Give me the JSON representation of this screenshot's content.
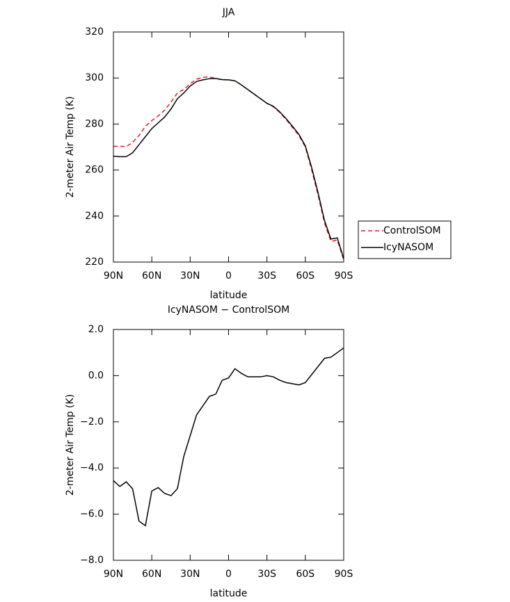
{
  "chart_data": [
    {
      "type": "line",
      "title": "JJA",
      "xlabel": "latitude",
      "ylabel": "2-meter Air Temp (K)",
      "x": [
        90,
        85,
        80,
        75,
        70,
        65,
        60,
        55,
        50,
        45,
        40,
        35,
        30,
        25,
        20,
        15,
        10,
        5,
        0,
        -5,
        -10,
        -15,
        -20,
        -25,
        -30,
        -35,
        -40,
        -45,
        -50,
        -55,
        -60,
        -65,
        -70,
        -75,
        -80,
        -85,
        -90
      ],
      "series": [
        {
          "name": "ControlSOM",
          "color": "#e41a1c",
          "line_style": "dashed",
          "values": [
            270.3,
            270.3,
            270.2,
            272,
            275,
            279,
            281.5,
            283.5,
            286,
            289.5,
            293.5,
            295,
            297.5,
            299.5,
            300.3,
            300.5,
            299.8,
            299.2,
            299.2,
            298.7,
            297,
            295,
            293,
            291,
            289,
            287.5,
            285,
            282,
            278.5,
            275,
            270,
            260,
            249,
            237,
            229,
            229.5,
            221
          ]
        },
        {
          "name": "IcyNASOM",
          "color": "#000000",
          "line_style": "solid",
          "values": [
            266,
            265.8,
            265.8,
            267.5,
            271,
            274.5,
            278,
            280.5,
            283,
            286.5,
            291,
            293.5,
            296.5,
            298.5,
            299.2,
            299.7,
            299.8,
            299.3,
            299.2,
            298.8,
            297,
            295,
            293,
            291,
            289,
            287.7,
            285.3,
            282.3,
            279,
            275.5,
            270.5,
            261,
            250,
            238,
            230,
            230.5,
            221.5
          ]
        }
      ],
      "xlim": [
        90,
        -90
      ],
      "xticks": [
        {
          "value": 90,
          "label": "90N"
        },
        {
          "value": 60,
          "label": "60N"
        },
        {
          "value": 30,
          "label": "30N"
        },
        0,
        {
          "value": -30,
          "label": "30S"
        },
        {
          "value": -60,
          "label": "60S"
        },
        {
          "value": -90,
          "label": "90S"
        }
      ],
      "ylim": [
        220,
        320
      ],
      "yticks": [
        220,
        240,
        260,
        280,
        300,
        320
      ],
      "legend": "outside-right"
    },
    {
      "type": "line",
      "title": "IcyNASOM − ControlSOM",
      "xlabel": "latitude",
      "ylabel": "2-meter Air Temp (K)",
      "x": [
        90,
        85,
        80,
        75,
        70,
        65,
        60,
        55,
        50,
        45,
        40,
        35,
        30,
        25,
        20,
        15,
        10,
        5,
        0,
        -5,
        -10,
        -15,
        -20,
        -25,
        -30,
        -35,
        -40,
        -45,
        -50,
        -55,
        -60,
        -65,
        -70,
        -75,
        -80,
        -85,
        -90
      ],
      "color": "#000000",
      "values": [
        -4.55,
        -4.8,
        -4.6,
        -4.9,
        -6.3,
        -6.5,
        -5.0,
        -4.85,
        -5.1,
        -5.2,
        -4.9,
        -3.5,
        -2.6,
        -1.7,
        -1.3,
        -0.9,
        -0.8,
        -0.2,
        -0.1,
        0.3,
        0.1,
        -0.05,
        -0.05,
        -0.05,
        0.0,
        -0.05,
        -0.2,
        -0.3,
        -0.35,
        -0.4,
        -0.3,
        0.05,
        0.4,
        0.75,
        0.8,
        1.0,
        1.2
      ],
      "xlim": [
        90,
        -90
      ],
      "xticks": [
        {
          "value": 90,
          "label": "90N"
        },
        {
          "value": 60,
          "label": "60N"
        },
        {
          "value": 30,
          "label": "30N"
        },
        0,
        {
          "value": -30,
          "label": "30S"
        },
        {
          "value": -60,
          "label": "60S"
        },
        {
          "value": -90,
          "label": "90S"
        }
      ],
      "ylim": [
        -8,
        2
      ],
      "yticks": [
        {
          "value": -8,
          "label": "−8.0"
        },
        {
          "value": -6,
          "label": "−6.0"
        },
        {
          "value": -4,
          "label": "−4.0"
        },
        {
          "value": -2,
          "label": "−2.0"
        },
        {
          "value": 0,
          "label": "0.0"
        },
        {
          "value": 2,
          "label": "2.0"
        }
      ]
    }
  ]
}
